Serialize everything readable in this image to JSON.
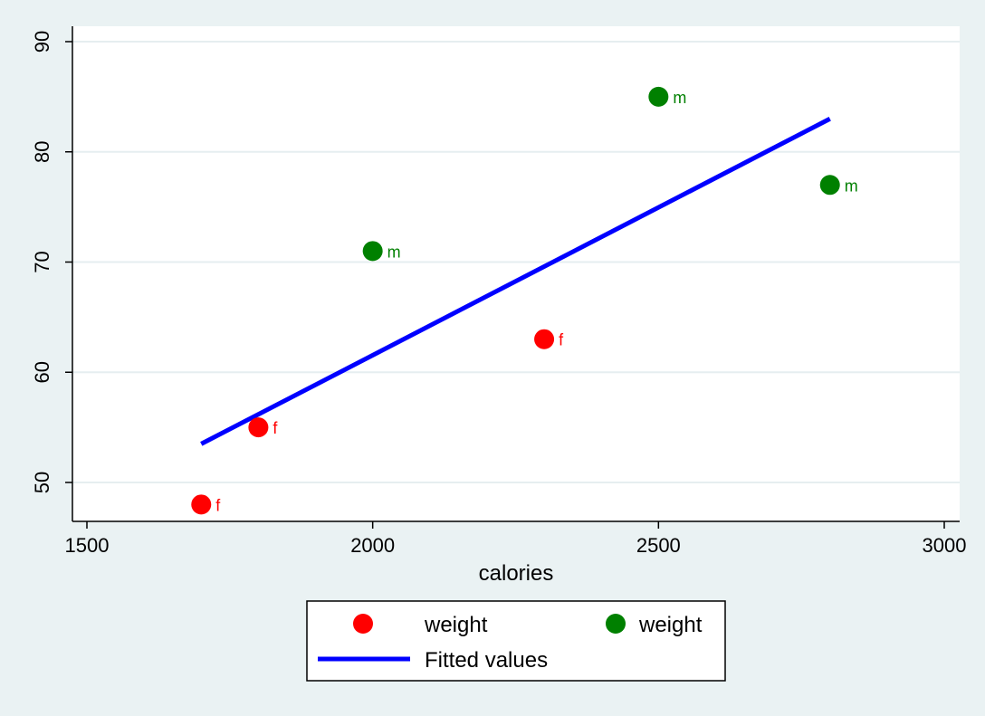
{
  "chart_data": {
    "type": "scatter",
    "xlabel": "calories",
    "ylabel": "",
    "xlim": [
      1450,
      3050
    ],
    "ylim": [
      46.5,
      91.5
    ],
    "x_ticks": [
      1500,
      2000,
      2500,
      3000
    ],
    "y_ticks": [
      50,
      60,
      70,
      80,
      90
    ],
    "grid": "horizontal",
    "series": [
      {
        "name": "weight",
        "kind": "scatter",
        "color": "#ff0000",
        "points": [
          {
            "x": 1700,
            "y": 48,
            "label": "f"
          },
          {
            "x": 1800,
            "y": 55,
            "label": "f"
          },
          {
            "x": 2300,
            "y": 63,
            "label": "f"
          }
        ]
      },
      {
        "name": "weight",
        "kind": "scatter",
        "color": "#008000",
        "points": [
          {
            "x": 2000,
            "y": 71,
            "label": "m"
          },
          {
            "x": 2500,
            "y": 85,
            "label": "m"
          },
          {
            "x": 2800,
            "y": 77,
            "label": "m"
          }
        ]
      },
      {
        "name": "Fitted values",
        "kind": "line",
        "color": "#0000ff",
        "points": [
          {
            "x": 1700,
            "y": 53.5
          },
          {
            "x": 2800,
            "y": 83
          }
        ]
      }
    ],
    "legend_position": "bottom"
  }
}
